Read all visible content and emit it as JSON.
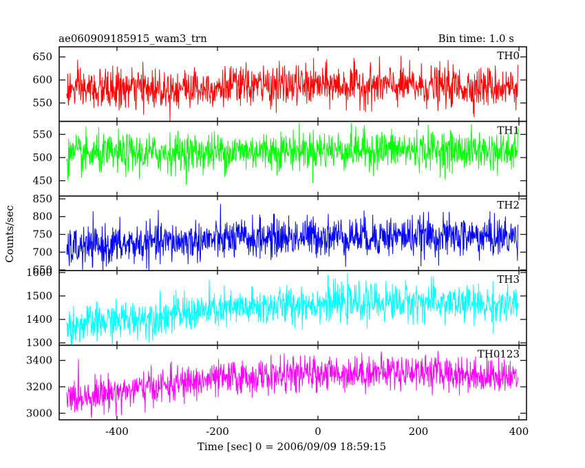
{
  "header": {
    "left_title": "ae060909185915_wam3_trn",
    "right_title": "Bin time: 1.0 s"
  },
  "chart_data": {
    "type": "line",
    "xlabel": "Time [sec] 0 = 2006/09/09 18:59:15",
    "ylabel": "Counts/sec",
    "xlim": [
      -515,
      415
    ],
    "xticks": [
      -400,
      -200,
      0,
      200,
      400
    ],
    "bin_time_s": 1.0,
    "grid": false,
    "panels": [
      {
        "name": "TH0",
        "color": "#ff0000",
        "ylim": [
          510,
          672
        ],
        "yticks": [
          550,
          600,
          650
        ],
        "x_range": [
          -500,
          398
        ],
        "trend": [
          [
            -500,
            578
          ],
          [
            -300,
            582
          ],
          [
            -100,
            588
          ],
          [
            100,
            588
          ],
          [
            300,
            585
          ],
          [
            398,
            585
          ]
        ],
        "noise_sd": 22
      },
      {
        "name": "TH1",
        "color": "#00ff00",
        "ylim": [
          417,
          578
        ],
        "yticks": [
          450,
          500,
          550
        ],
        "x_range": [
          -500,
          398
        ],
        "trend": [
          [
            -500,
            505
          ],
          [
            -300,
            510
          ],
          [
            -100,
            515
          ],
          [
            100,
            517
          ],
          [
            300,
            515
          ],
          [
            398,
            512
          ]
        ],
        "noise_sd": 21
      },
      {
        "name": "TH2",
        "color": "#0000ff",
        "ylim": [
          648,
          858
        ],
        "yticks": [
          650,
          700,
          750,
          800,
          850
        ],
        "x_range": [
          -500,
          398
        ],
        "trend": [
          [
            -500,
            710
          ],
          [
            -400,
            720
          ],
          [
            -200,
            735
          ],
          [
            0,
            745
          ],
          [
            200,
            745
          ],
          [
            398,
            742
          ]
        ],
        "noise_sd": 28
      },
      {
        "name": "TH3",
        "color": "#00ffff",
        "ylim": [
          1290,
          1608
        ],
        "yticks": [
          1300,
          1400,
          1500,
          1600
        ],
        "x_range": [
          -500,
          398
        ],
        "trend": [
          [
            -500,
            1370
          ],
          [
            -400,
            1395
          ],
          [
            -200,
            1440
          ],
          [
            0,
            1470
          ],
          [
            200,
            1475
          ],
          [
            398,
            1455
          ]
        ],
        "noise_sd": 40
      },
      {
        "name": "TH0123",
        "color": "#ff00ff",
        "ylim": [
          2950,
          3515
        ],
        "yticks": [
          3000,
          3200,
          3400
        ],
        "x_range": [
          -500,
          398
        ],
        "trend": [
          [
            -500,
            3120
          ],
          [
            -400,
            3160
          ],
          [
            -200,
            3260
          ],
          [
            0,
            3300
          ],
          [
            200,
            3320
          ],
          [
            398,
            3270
          ]
        ],
        "noise_sd": 65
      }
    ]
  }
}
